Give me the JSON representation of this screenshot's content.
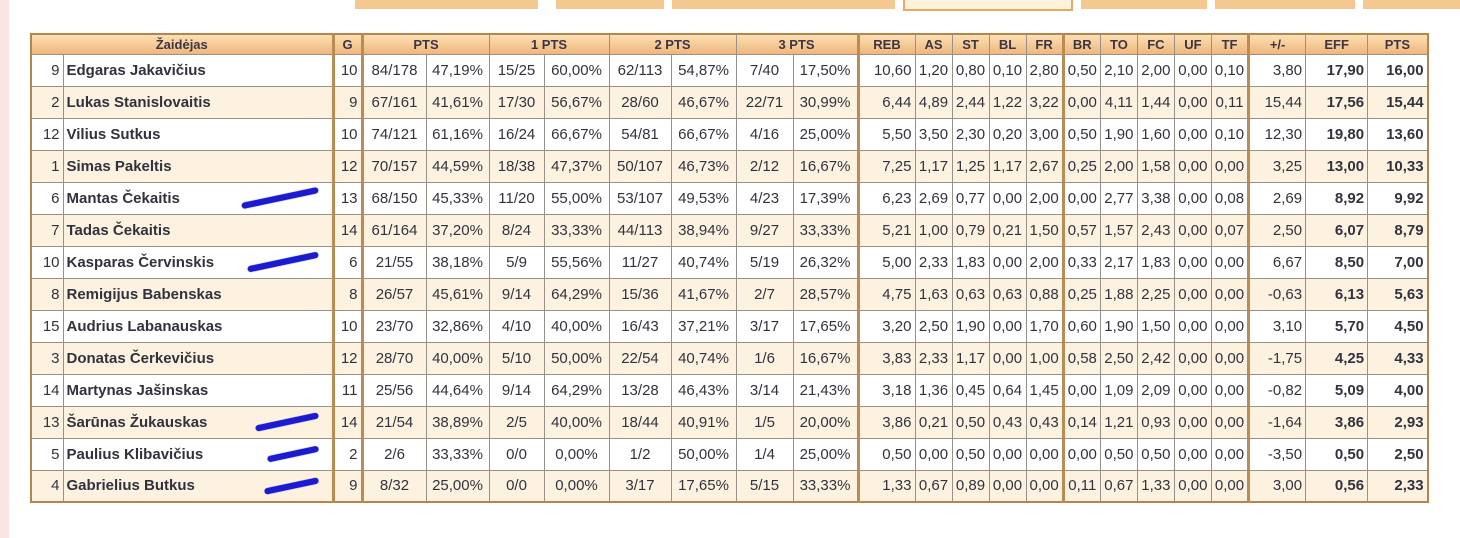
{
  "colors": {
    "accent_tab": "#f5c88f",
    "header_top": "#fbe0b4",
    "header_bottom": "#f0b67c",
    "group_border": "#bb8b54",
    "row_alt": "#fdf2e0",
    "text": "#32323f",
    "muted": "#d4d4d4",
    "pen_mark_blue": "#1b1bd0",
    "left_strip_pink": "#fbe5e2"
  },
  "table": {
    "header_groups": [
      {
        "label": "Žaidėjas",
        "colspan": 2
      },
      {
        "label": "G",
        "colspan": 1
      },
      {
        "label": "PTS",
        "colspan": 2
      },
      {
        "label": "1 PTS",
        "colspan": 2
      },
      {
        "label": "2 PTS",
        "colspan": 2
      },
      {
        "label": "3 PTS",
        "colspan": 2
      },
      {
        "label": "REB",
        "colspan": 1
      },
      {
        "label": "AS",
        "colspan": 1
      },
      {
        "label": "ST",
        "colspan": 1
      },
      {
        "label": "BL",
        "colspan": 1
      },
      {
        "label": "FR",
        "colspan": 1
      },
      {
        "label": "BR",
        "colspan": 1
      },
      {
        "label": "TO",
        "colspan": 1
      },
      {
        "label": "FC",
        "colspan": 1
      },
      {
        "label": "UF",
        "colspan": 1
      },
      {
        "label": "TF",
        "colspan": 1
      },
      {
        "label": "+/-",
        "colspan": 1
      },
      {
        "label": "EFF",
        "colspan": 1
      },
      {
        "label": "PTS",
        "colspan": 1
      }
    ],
    "stat_keys": [
      "g",
      "pts_made_att",
      "pts_pct",
      "1pts_made_att",
      "1pts_pct",
      "2pts_made_att",
      "2pts_pct",
      "3pts_made_att",
      "3pts_pct",
      "reb",
      "as",
      "st",
      "bl",
      "fr",
      "br",
      "to",
      "fc",
      "uf",
      "tf",
      "plus_minus",
      "eff",
      "pts_avg"
    ],
    "rows": [
      {
        "no": "9",
        "name": "Edgaras Jakavičius",
        "marked": false,
        "mark_w": 0,
        "stats": [
          "10",
          "84/178",
          "47,19%",
          "15/25",
          "60,00%",
          "62/113",
          "54,87%",
          "7/40",
          "17,50%",
          "10,60",
          "1,20",
          "0,80",
          "0,10",
          "2,80",
          "0,50",
          "2,10",
          "2,00",
          "0,00",
          "0,10",
          "3,80",
          "17,90",
          "16,00"
        ]
      },
      {
        "no": "2",
        "name": "Lukas Stanislovaitis",
        "marked": false,
        "mark_w": 0,
        "stats": [
          "9",
          "67/161",
          "41,61%",
          "17/30",
          "56,67%",
          "28/60",
          "46,67%",
          "22/71",
          "30,99%",
          "6,44",
          "4,89",
          "2,44",
          "1,22",
          "3,22",
          "0,00",
          "4,11",
          "1,44",
          "0,00",
          "0,11",
          "15,44",
          "17,56",
          "15,44"
        ]
      },
      {
        "no": "12",
        "name": "Vilius Sutkus",
        "marked": false,
        "mark_w": 0,
        "stats": [
          "10",
          "74/121",
          "61,16%",
          "16/24",
          "66,67%",
          "54/81",
          "66,67%",
          "4/16",
          "25,00%",
          "5,50",
          "3,50",
          "2,30",
          "0,20",
          "3,00",
          "0,50",
          "1,90",
          "1,60",
          "0,00",
          "0,10",
          "12,30",
          "19,80",
          "13,60"
        ]
      },
      {
        "no": "1",
        "name": "Simas Pakeltis",
        "marked": false,
        "mark_w": 0,
        "stats": [
          "12",
          "70/157",
          "44,59%",
          "18/38",
          "47,37%",
          "50/107",
          "46,73%",
          "2/12",
          "16,67%",
          "7,25",
          "1,17",
          "1,25",
          "1,17",
          "2,67",
          "0,25",
          "2,00",
          "1,58",
          "0,00",
          "0,00",
          "3,25",
          "13,00",
          "10,33"
        ]
      },
      {
        "no": "6",
        "name": "Mantas Čekaitis",
        "marked": true,
        "mark_w": 78,
        "stats": [
          "13",
          "68/150",
          "45,33%",
          "11/20",
          "55,00%",
          "53/107",
          "49,53%",
          "4/23",
          "17,39%",
          "6,23",
          "2,69",
          "0,77",
          "0,00",
          "2,00",
          "0,00",
          "2,77",
          "3,38",
          "0,00",
          "0,08",
          "2,69",
          "8,92",
          "9,92"
        ]
      },
      {
        "no": "7",
        "name": "Tadas Čekaitis",
        "marked": false,
        "mark_w": 0,
        "stats": [
          "14",
          "61/164",
          "37,20%",
          "8/24",
          "33,33%",
          "44/113",
          "38,94%",
          "9/27",
          "33,33%",
          "5,21",
          "1,00",
          "0,79",
          "0,21",
          "1,50",
          "0,57",
          "1,57",
          "2,43",
          "0,00",
          "0,07",
          "2,50",
          "6,07",
          "8,79"
        ]
      },
      {
        "no": "10",
        "name": "Kasparas Červinskis",
        "marked": true,
        "mark_w": 72,
        "stats": [
          "6",
          "21/55",
          "38,18%",
          "5/9",
          "55,56%",
          "11/27",
          "40,74%",
          "5/19",
          "26,32%",
          "5,00",
          "2,33",
          "1,83",
          "0,00",
          "2,00",
          "0,33",
          "2,17",
          "1,83",
          "0,00",
          "0,00",
          "6,67",
          "8,50",
          "7,00"
        ]
      },
      {
        "no": "8",
        "name": "Remigijus Babenskas",
        "marked": false,
        "mark_w": 0,
        "stats": [
          "8",
          "26/57",
          "45,61%",
          "9/14",
          "64,29%",
          "15/36",
          "41,67%",
          "2/7",
          "28,57%",
          "4,75",
          "1,63",
          "0,63",
          "0,63",
          "0,88",
          "0,25",
          "1,88",
          "2,25",
          "0,00",
          "0,00",
          "-0,63",
          "6,13",
          "5,63"
        ]
      },
      {
        "no": "15",
        "name": "Audrius Labanauskas",
        "marked": false,
        "mark_w": 0,
        "stats": [
          "10",
          "23/70",
          "32,86%",
          "4/10",
          "40,00%",
          "16/43",
          "37,21%",
          "3/17",
          "17,65%",
          "3,20",
          "2,50",
          "1,90",
          "0,00",
          "1,70",
          "0,60",
          "1,90",
          "1,50",
          "0,00",
          "0,00",
          "3,10",
          "5,70",
          "4,50"
        ]
      },
      {
        "no": "3",
        "name": "Donatas Čerkevičius",
        "marked": false,
        "mark_w": 0,
        "stats": [
          "12",
          "28/70",
          "40,00%",
          "5/10",
          "50,00%",
          "22/54",
          "40,74%",
          "1/6",
          "16,67%",
          "3,83",
          "2,33",
          "1,17",
          "0,00",
          "1,00",
          "0,58",
          "2,50",
          "2,42",
          "0,00",
          "0,00",
          "-1,75",
          "4,25",
          "4,33"
        ]
      },
      {
        "no": "14",
        "name": "Martynas Jašinskas",
        "marked": false,
        "mark_w": 0,
        "stats": [
          "11",
          "25/56",
          "44,64%",
          "9/14",
          "64,29%",
          "13/28",
          "46,43%",
          "3/14",
          "21,43%",
          "3,18",
          "1,36",
          "0,45",
          "0,64",
          "1,45",
          "0,00",
          "1,09",
          "2,09",
          "0,00",
          "0,00",
          "-0,82",
          "5,09",
          "4,00"
        ]
      },
      {
        "no": "13",
        "name": "Šarūnas Žukauskas",
        "marked": true,
        "mark_w": 64,
        "stats": [
          "14",
          "21/54",
          "38,89%",
          "2/5",
          "40,00%",
          "18/44",
          "40,91%",
          "1/5",
          "20,00%",
          "3,86",
          "0,21",
          "0,50",
          "0,43",
          "0,43",
          "0,14",
          "1,21",
          "0,93",
          "0,00",
          "0,00",
          "-1,64",
          "3,86",
          "2,93"
        ]
      },
      {
        "no": "5",
        "name": "Paulius Klibavičius",
        "marked": true,
        "mark_w": 52,
        "stats": [
          "2",
          "2/6",
          "33,33%",
          "0/0",
          "0,00%",
          "1/2",
          "50,00%",
          "1/4",
          "25,00%",
          "0,50",
          "0,00",
          "0,50",
          "0,00",
          "0,00",
          "0,00",
          "0,50",
          "0,50",
          "0,00",
          "0,00",
          "-3,50",
          "0,50",
          "2,50"
        ]
      },
      {
        "no": "4",
        "name": "Gabrielius Butkus",
        "marked": true,
        "mark_w": 55,
        "stats": [
          "9",
          "8/32",
          "25,00%",
          "0/0",
          "0,00%",
          "3/17",
          "17,65%",
          "5/15",
          "33,33%",
          "1,33",
          "0,67",
          "0,89",
          "0,00",
          "0,00",
          "0,11",
          "0,67",
          "1,33",
          "0,00",
          "0,00",
          "3,00",
          "0,56",
          "2,33"
        ]
      }
    ]
  }
}
